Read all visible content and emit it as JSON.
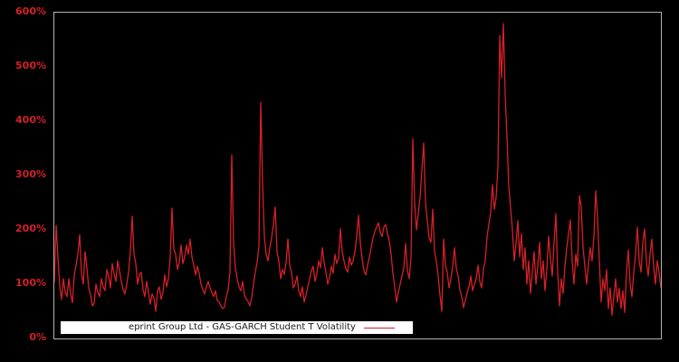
{
  "window": {
    "background_color": "#000000",
    "plot_border_color": "#b3b3b3",
    "axis_label_color": "#d22027"
  },
  "legend": {
    "background": "#ffffff",
    "text_color": "#1a1a1a",
    "sample_line_color": "#d22027"
  },
  "chart_data": {
    "type": "line",
    "title": "",
    "xlabel": "",
    "ylabel": "",
    "x_axis_note": "time index, no x tick labels shown",
    "grid": false,
    "legend_position": "bottom inside plot, white bar",
    "ylim": [
      0,
      600
    ],
    "y_ticks_pct": [
      0,
      100,
      200,
      300,
      400,
      500,
      600
    ],
    "y_tick_labels": [
      "0%",
      "100%",
      "200%",
      "300%",
      "400%",
      "500%",
      "600%"
    ],
    "series": [
      {
        "name": "eprint Group Ltd - GAS-GARCH Student T Volatility",
        "color": "#d62028",
        "unit": "percent",
        "values_pct": [
          103,
          208,
          150,
          95,
          72,
          110,
          85,
          77,
          110,
          82,
          66,
          117,
          135,
          155,
          191,
          120,
          100,
          160,
          130,
          93,
          80,
          60,
          65,
          100,
          85,
          77,
          110,
          95,
          88,
          127,
          115,
          93,
          138,
          120,
          105,
          143,
          125,
          105,
          90,
          82,
          100,
          122,
          160,
          225,
          155,
          138,
          100,
          118,
          122,
          90,
          77,
          105,
          85,
          63,
          82,
          75,
          50,
          88,
          95,
          72,
          85,
          117,
          95,
          110,
          150,
          240,
          165,
          155,
          127,
          140,
          172,
          138,
          150,
          172,
          155,
          183,
          150,
          135,
          117,
          133,
          120,
          100,
          90,
          82,
          95,
          105,
          93,
          85,
          77,
          88,
          70,
          67,
          60,
          55,
          58,
          77,
          90,
          122,
          338,
          177,
          130,
          110,
          95,
          88,
          105,
          80,
          72,
          68,
          60,
          75,
          100,
          122,
          140,
          170,
          435,
          288,
          188,
          155,
          143,
          167,
          185,
          210,
          242,
          160,
          143,
          110,
          127,
          118,
          140,
          183,
          135,
          122,
          93,
          100,
          115,
          88,
          77,
          95,
          67,
          80,
          95,
          110,
          125,
          133,
          105,
          120,
          143,
          130,
          167,
          140,
          122,
          100,
          112,
          133,
          120,
          155,
          138,
          148,
          202,
          160,
          143,
          128,
          122,
          150,
          135,
          143,
          160,
          188,
          227,
          177,
          147,
          125,
          117,
          135,
          150,
          167,
          185,
          197,
          205,
          213,
          195,
          188,
          205,
          210,
          193,
          180,
          155,
          120,
          95,
          67,
          85,
          100,
          115,
          130,
          175,
          125,
          110,
          150,
          368,
          250,
          200,
          230,
          260,
          310,
          360,
          250,
          217,
          185,
          177,
          238,
          160,
          143,
          115,
          80,
          50,
          183,
          135,
          122,
          93,
          110,
          133,
          167,
          130,
          115,
          90,
          77,
          57,
          70,
          85,
          95,
          115,
          88,
          100,
          110,
          135,
          105,
          93,
          128,
          143,
          188,
          210,
          233,
          283,
          238,
          260,
          317,
          558,
          480,
          580,
          450,
          370,
          280,
          240,
          200,
          143,
          175,
          217,
          150,
          193,
          127,
          167,
          100,
          143,
          83,
          122,
          160,
          100,
          133,
          177,
          110,
          143,
          88,
          127,
          188,
          147,
          115,
          177,
          230,
          122,
          60,
          110,
          83,
          133,
          167,
          193,
          218,
          143,
          100,
          155,
          133,
          263,
          243,
          167,
          133,
          100,
          138,
          167,
          143,
          188,
          272,
          222,
          143,
          67,
          110,
          88,
          127,
          55,
          93,
          43,
          77,
          110,
          67,
          93,
          55,
          88,
          48,
          122,
          163,
          100,
          77,
          122,
          155,
          205,
          143,
          122,
          177,
          202,
          143,
          115,
          155,
          183,
          133,
          100,
          143,
          122,
          93
        ]
      }
    ]
  }
}
